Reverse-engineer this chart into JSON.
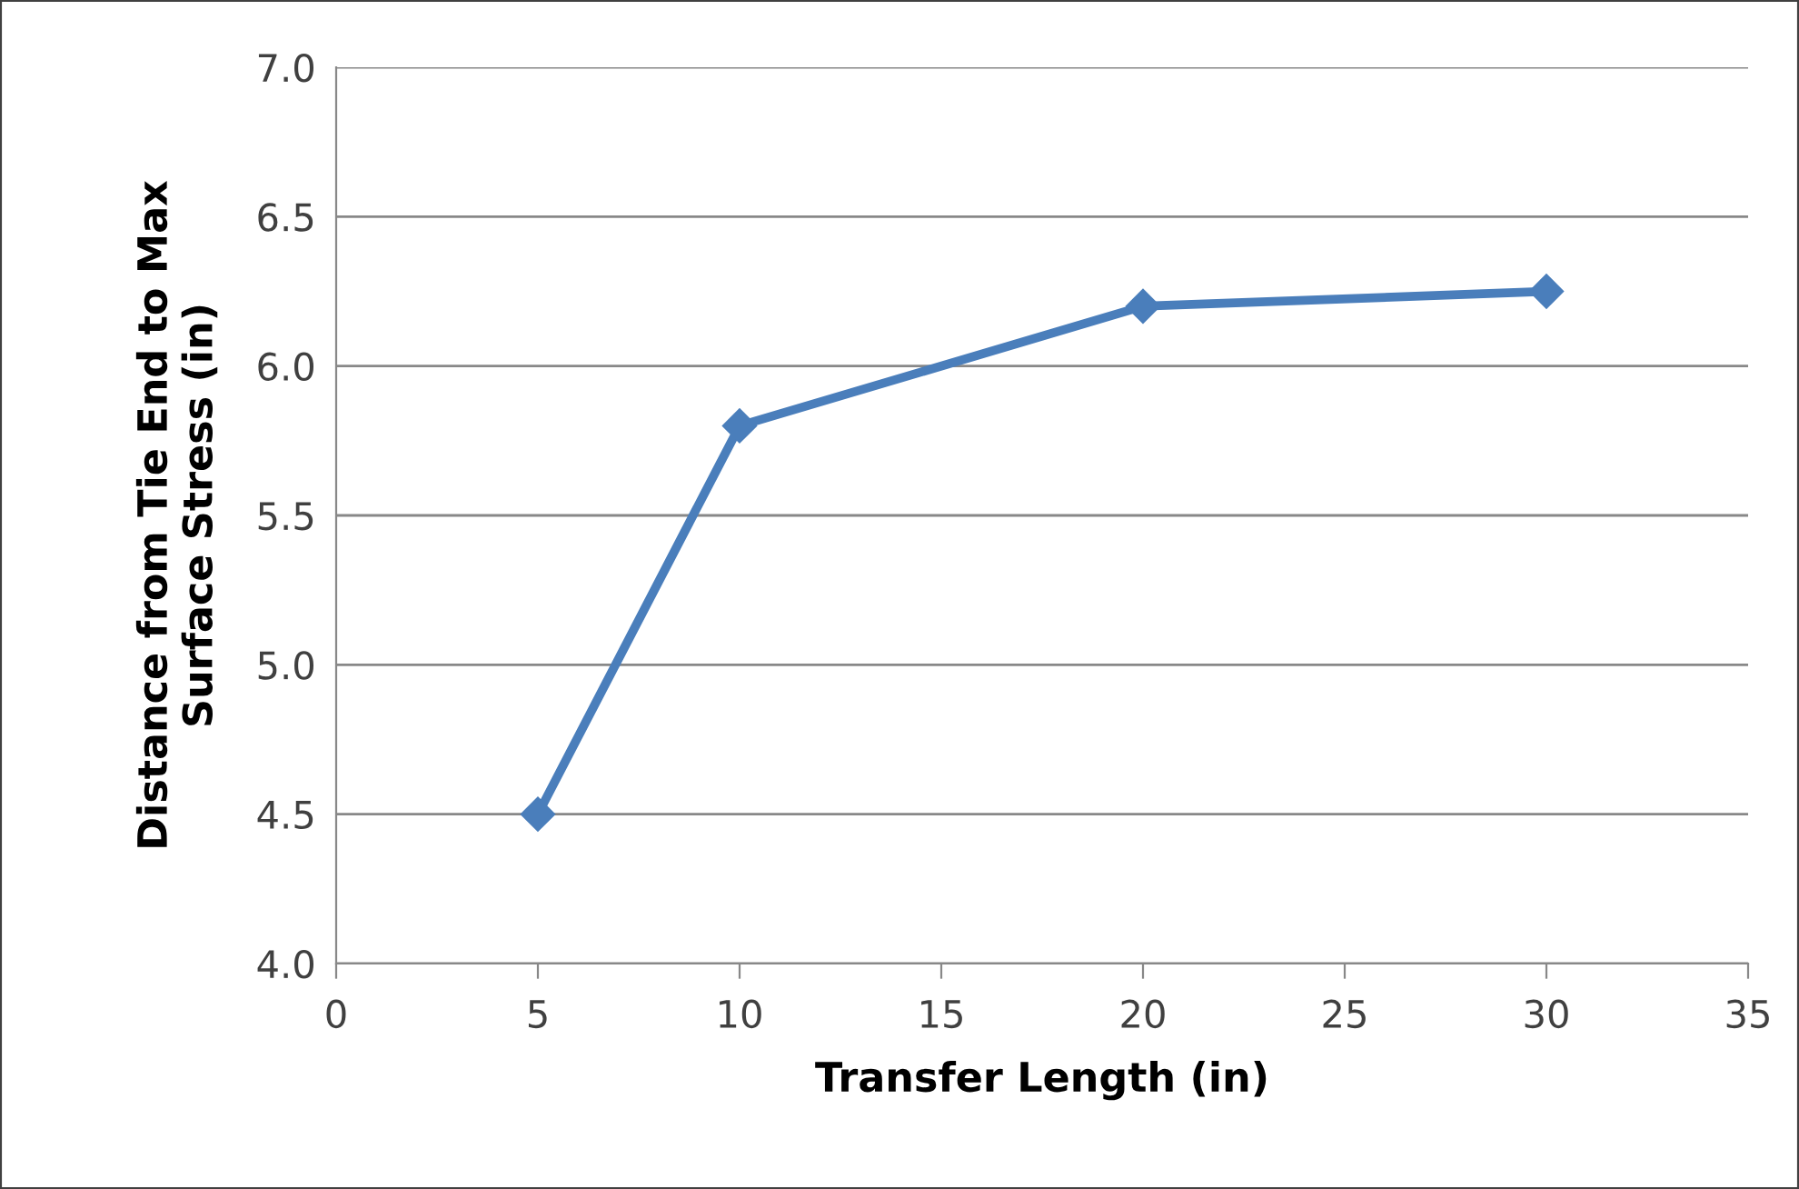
{
  "chart_data": {
    "type": "line",
    "xlabel": "Transfer Length (in)",
    "ylabel": "Distance from Tie End to Max\nSurface Stress (in)",
    "x": [
      5,
      10,
      20,
      30
    ],
    "series": [
      {
        "color": "#4a7ebb",
        "values": [
          4.5,
          5.8,
          6.2,
          6.25
        ]
      }
    ],
    "xlim": [
      0,
      35
    ],
    "xticks": [
      0,
      5,
      10,
      15,
      20,
      25,
      30,
      35
    ],
    "ylim": [
      4.0,
      7.0
    ],
    "yticks": [
      {
        "value": 4.0,
        "label": "4.0"
      },
      {
        "value": 4.5,
        "label": "4.5"
      },
      {
        "value": 5.0,
        "label": "5.0"
      },
      {
        "value": 5.5,
        "label": "5.5"
      },
      {
        "value": 6.0,
        "label": "6.0"
      },
      {
        "value": 6.5,
        "label": "6.5"
      },
      {
        "value": 7.0,
        "label": "7.0"
      }
    ],
    "grid": "y",
    "marker": "diamond",
    "line_style": "solid",
    "legend": false
  }
}
